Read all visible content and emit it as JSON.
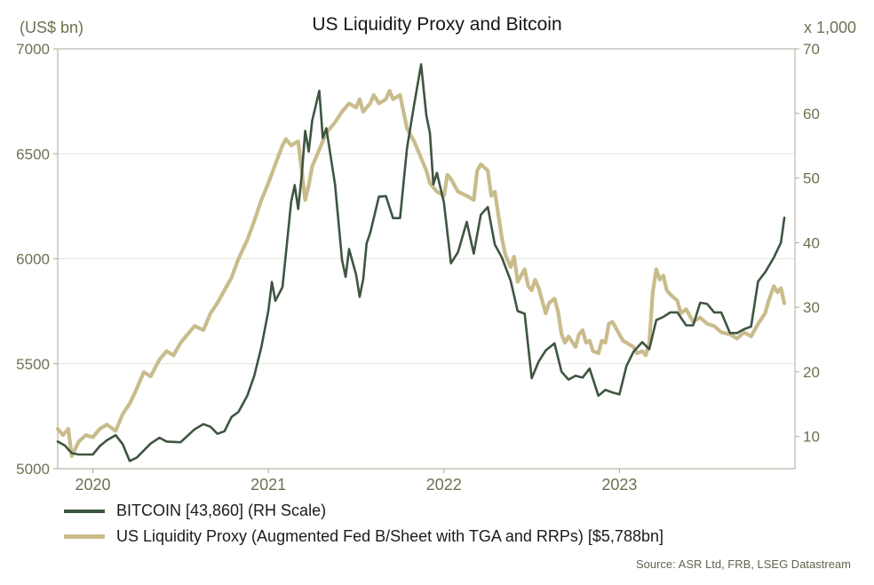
{
  "source": "Source: ASR Ltd, FRB, LSEG Datastream",
  "colors": {
    "title": "#161616",
    "tick_label": "#6f7150",
    "legend_text": "#1b1b1b",
    "source": "#62654f",
    "axis": "#a9a99a",
    "grid": "#e4e4da",
    "bitcoin_line": "#3e5540",
    "liquidity_line": "#c9bc8c",
    "background": "#ffffff"
  },
  "chart_data": {
    "type": "line",
    "title": "US Liquidity Proxy and Bitcoin",
    "xlabel": "",
    "ylabel": "",
    "grid": true,
    "legend_position": "bottom-left",
    "left_axis": {
      "label": "(US$ bn)",
      "range": [
        5000,
        7000
      ],
      "ticks": [
        5000,
        5500,
        6000,
        6500,
        7000
      ]
    },
    "right_axis": {
      "label": "x 1,000",
      "range": [
        5,
        70
      ],
      "ticks": [
        10,
        20,
        30,
        40,
        50,
        60,
        70
      ]
    },
    "x_axis": {
      "range": [
        2019.8,
        2024.0
      ],
      "tick_positions": [
        2020,
        2021,
        2022,
        2023
      ],
      "tick_labels": [
        "2020",
        "2021",
        "2022",
        "2023"
      ]
    },
    "series": [
      {
        "id": "bitcoin-line",
        "name": "BITCOIN [43,860] (RH Scale)",
        "axis": "right",
        "color": "#3e5540",
        "width": 2.6,
        "last_value": 43860,
        "points": [
          [
            2019.8,
            9.2
          ],
          [
            2019.84,
            8.6
          ],
          [
            2019.88,
            7.4
          ],
          [
            2019.92,
            7.2
          ],
          [
            2020.0,
            7.2
          ],
          [
            2020.04,
            8.5
          ],
          [
            2020.08,
            9.4
          ],
          [
            2020.13,
            10.2
          ],
          [
            2020.17,
            8.8
          ],
          [
            2020.21,
            6.2
          ],
          [
            2020.25,
            6.7
          ],
          [
            2020.33,
            8.9
          ],
          [
            2020.38,
            9.8
          ],
          [
            2020.42,
            9.2
          ],
          [
            2020.5,
            9.1
          ],
          [
            2020.58,
            11.1
          ],
          [
            2020.63,
            11.9
          ],
          [
            2020.67,
            11.5
          ],
          [
            2020.71,
            10.4
          ],
          [
            2020.75,
            10.8
          ],
          [
            2020.79,
            13.0
          ],
          [
            2020.83,
            13.8
          ],
          [
            2020.88,
            16.3
          ],
          [
            2020.92,
            19.4
          ],
          [
            2020.96,
            23.8
          ],
          [
            2021.0,
            29.4
          ],
          [
            2021.02,
            33.9
          ],
          [
            2021.04,
            31.0
          ],
          [
            2021.08,
            33.1
          ],
          [
            2021.1,
            38.3
          ],
          [
            2021.13,
            46.3
          ],
          [
            2021.15,
            48.9
          ],
          [
            2021.17,
            45.2
          ],
          [
            2021.19,
            50.4
          ],
          [
            2021.21,
            57.3
          ],
          [
            2021.23,
            54.1
          ],
          [
            2021.25,
            58.9
          ],
          [
            2021.29,
            63.5
          ],
          [
            2021.31,
            56.2
          ],
          [
            2021.33,
            57.7
          ],
          [
            2021.38,
            49.0
          ],
          [
            2021.42,
            37.3
          ],
          [
            2021.44,
            34.7
          ],
          [
            2021.46,
            39.0
          ],
          [
            2021.5,
            35.0
          ],
          [
            2021.52,
            31.6
          ],
          [
            2021.54,
            34.3
          ],
          [
            2021.56,
            39.9
          ],
          [
            2021.58,
            41.5
          ],
          [
            2021.63,
            47.1
          ],
          [
            2021.67,
            47.2
          ],
          [
            2021.71,
            43.8
          ],
          [
            2021.75,
            43.8
          ],
          [
            2021.79,
            54.7
          ],
          [
            2021.83,
            61.3
          ],
          [
            2021.87,
            67.6
          ],
          [
            2021.9,
            59.7
          ],
          [
            2021.92,
            57.0
          ],
          [
            2021.94,
            49.0
          ],
          [
            2021.96,
            50.8
          ],
          [
            2022.0,
            46.2
          ],
          [
            2022.04,
            36.8
          ],
          [
            2022.08,
            38.5
          ],
          [
            2022.13,
            43.2
          ],
          [
            2022.17,
            38.3
          ],
          [
            2022.21,
            44.3
          ],
          [
            2022.25,
            45.5
          ],
          [
            2022.29,
            39.7
          ],
          [
            2022.33,
            37.7
          ],
          [
            2022.38,
            34.1
          ],
          [
            2022.42,
            29.4
          ],
          [
            2022.46,
            29.0
          ],
          [
            2022.5,
            19.0
          ],
          [
            2022.54,
            21.6
          ],
          [
            2022.58,
            23.3
          ],
          [
            2022.63,
            24.4
          ],
          [
            2022.67,
            20.0
          ],
          [
            2022.71,
            18.8
          ],
          [
            2022.75,
            19.4
          ],
          [
            2022.79,
            19.1
          ],
          [
            2022.83,
            20.5
          ],
          [
            2022.88,
            16.3
          ],
          [
            2022.92,
            17.2
          ],
          [
            2022.96,
            16.8
          ],
          [
            2023.0,
            16.5
          ],
          [
            2023.04,
            20.9
          ],
          [
            2023.08,
            23.1
          ],
          [
            2023.13,
            24.6
          ],
          [
            2023.17,
            23.5
          ],
          [
            2023.21,
            28.0
          ],
          [
            2023.25,
            28.5
          ],
          [
            2023.29,
            29.2
          ],
          [
            2023.33,
            29.2
          ],
          [
            2023.38,
            27.2
          ],
          [
            2023.42,
            27.2
          ],
          [
            2023.46,
            30.7
          ],
          [
            2023.5,
            30.5
          ],
          [
            2023.54,
            29.2
          ],
          [
            2023.58,
            29.2
          ],
          [
            2023.63,
            26.0
          ],
          [
            2023.67,
            26.0
          ],
          [
            2023.71,
            26.6
          ],
          [
            2023.75,
            27.0
          ],
          [
            2023.79,
            34.0
          ],
          [
            2023.83,
            35.4
          ],
          [
            2023.88,
            37.7
          ],
          [
            2023.92,
            40.0
          ],
          [
            2023.94,
            43.86
          ]
        ]
      },
      {
        "id": "liquidity-line",
        "name": "US Liquidity Proxy (Augmented Fed B/Sheet with TGA and RRPs) [$5,788bn]",
        "axis": "left",
        "color": "#c9bc8c",
        "width": 4.2,
        "last_value": 5788,
        "points": [
          [
            2019.8,
            5190
          ],
          [
            2019.83,
            5160
          ],
          [
            2019.86,
            5190
          ],
          [
            2019.88,
            5060
          ],
          [
            2019.92,
            5130
          ],
          [
            2019.96,
            5160
          ],
          [
            2020.0,
            5150
          ],
          [
            2020.04,
            5190
          ],
          [
            2020.08,
            5210
          ],
          [
            2020.13,
            5180
          ],
          [
            2020.17,
            5260
          ],
          [
            2020.21,
            5310
          ],
          [
            2020.25,
            5380
          ],
          [
            2020.29,
            5460
          ],
          [
            2020.33,
            5440
          ],
          [
            2020.38,
            5520
          ],
          [
            2020.42,
            5560
          ],
          [
            2020.46,
            5540
          ],
          [
            2020.5,
            5600
          ],
          [
            2020.54,
            5640
          ],
          [
            2020.58,
            5680
          ],
          [
            2020.63,
            5660
          ],
          [
            2020.67,
            5740
          ],
          [
            2020.71,
            5790
          ],
          [
            2020.75,
            5850
          ],
          [
            2020.79,
            5910
          ],
          [
            2020.83,
            6000
          ],
          [
            2020.88,
            6090
          ],
          [
            2020.92,
            6180
          ],
          [
            2020.96,
            6280
          ],
          [
            2021.0,
            6360
          ],
          [
            2021.04,
            6450
          ],
          [
            2021.08,
            6540
          ],
          [
            2021.1,
            6570
          ],
          [
            2021.13,
            6540
          ],
          [
            2021.17,
            6560
          ],
          [
            2021.19,
            6420
          ],
          [
            2021.21,
            6280
          ],
          [
            2021.23,
            6350
          ],
          [
            2021.25,
            6440
          ],
          [
            2021.29,
            6520
          ],
          [
            2021.33,
            6600
          ],
          [
            2021.38,
            6650
          ],
          [
            2021.42,
            6700
          ],
          [
            2021.46,
            6740
          ],
          [
            2021.5,
            6720
          ],
          [
            2021.52,
            6760
          ],
          [
            2021.54,
            6700
          ],
          [
            2021.58,
            6740
          ],
          [
            2021.6,
            6780
          ],
          [
            2021.63,
            6740
          ],
          [
            2021.67,
            6760
          ],
          [
            2021.69,
            6800
          ],
          [
            2021.71,
            6760
          ],
          [
            2021.75,
            6780
          ],
          [
            2021.77,
            6700
          ],
          [
            2021.79,
            6620
          ],
          [
            2021.83,
            6560
          ],
          [
            2021.87,
            6480
          ],
          [
            2021.9,
            6420
          ],
          [
            2021.92,
            6360
          ],
          [
            2021.96,
            6320
          ],
          [
            2022.0,
            6300
          ],
          [
            2022.02,
            6400
          ],
          [
            2022.04,
            6380
          ],
          [
            2022.08,
            6320
          ],
          [
            2022.13,
            6300
          ],
          [
            2022.17,
            6280
          ],
          [
            2022.19,
            6420
          ],
          [
            2022.21,
            6450
          ],
          [
            2022.25,
            6420
          ],
          [
            2022.27,
            6300
          ],
          [
            2022.29,
            6320
          ],
          [
            2022.33,
            6100
          ],
          [
            2022.35,
            6020
          ],
          [
            2022.38,
            5960
          ],
          [
            2022.4,
            6010
          ],
          [
            2022.42,
            5890
          ],
          [
            2022.46,
            5950
          ],
          [
            2022.48,
            5870
          ],
          [
            2022.5,
            5850
          ],
          [
            2022.52,
            5900
          ],
          [
            2022.54,
            5860
          ],
          [
            2022.58,
            5740
          ],
          [
            2022.6,
            5790
          ],
          [
            2022.63,
            5810
          ],
          [
            2022.65,
            5750
          ],
          [
            2022.67,
            5640
          ],
          [
            2022.69,
            5600
          ],
          [
            2022.71,
            5630
          ],
          [
            2022.75,
            5580
          ],
          [
            2022.77,
            5640
          ],
          [
            2022.79,
            5660
          ],
          [
            2022.81,
            5600
          ],
          [
            2022.83,
            5610
          ],
          [
            2022.85,
            5560
          ],
          [
            2022.88,
            5550
          ],
          [
            2022.9,
            5610
          ],
          [
            2022.92,
            5600
          ],
          [
            2022.94,
            5690
          ],
          [
            2022.96,
            5700
          ],
          [
            2023.0,
            5640
          ],
          [
            2023.02,
            5610
          ],
          [
            2023.04,
            5600
          ],
          [
            2023.08,
            5580
          ],
          [
            2023.1,
            5550
          ],
          [
            2023.13,
            5560
          ],
          [
            2023.15,
            5540
          ],
          [
            2023.17,
            5600
          ],
          [
            2023.19,
            5840
          ],
          [
            2023.21,
            5950
          ],
          [
            2023.23,
            5900
          ],
          [
            2023.25,
            5920
          ],
          [
            2023.27,
            5850
          ],
          [
            2023.29,
            5830
          ],
          [
            2023.33,
            5800
          ],
          [
            2023.35,
            5740
          ],
          [
            2023.38,
            5760
          ],
          [
            2023.42,
            5700
          ],
          [
            2023.46,
            5720
          ],
          [
            2023.5,
            5690
          ],
          [
            2023.54,
            5680
          ],
          [
            2023.58,
            5650
          ],
          [
            2023.63,
            5640
          ],
          [
            2023.67,
            5620
          ],
          [
            2023.71,
            5650
          ],
          [
            2023.75,
            5630
          ],
          [
            2023.79,
            5690
          ],
          [
            2023.83,
            5740
          ],
          [
            2023.85,
            5800
          ],
          [
            2023.88,
            5870
          ],
          [
            2023.9,
            5840
          ],
          [
            2023.92,
            5860
          ],
          [
            2023.94,
            5788
          ]
        ]
      }
    ]
  }
}
